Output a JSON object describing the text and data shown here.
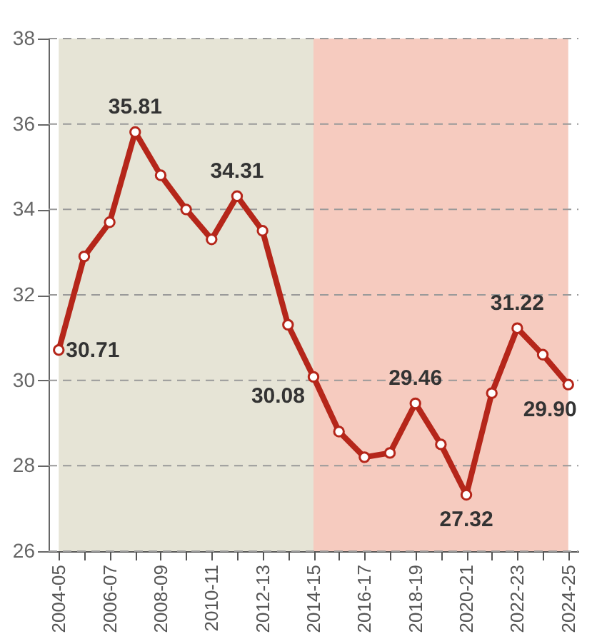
{
  "chart_data": {
    "type": "line",
    "categories": [
      "2004-05",
      null,
      "2006-07",
      null,
      "2008-09",
      null,
      "2010-11",
      null,
      "2012-13",
      null,
      "2014-15",
      null,
      "2016-17",
      null,
      "2018-19",
      null,
      "2020-21",
      null,
      "2022-23",
      null,
      "2024-25"
    ],
    "series": [
      {
        "color": "#b5261a",
        "values": [
          30.71,
          32.9,
          33.7,
          35.81,
          34.8,
          34.0,
          33.3,
          34.31,
          33.5,
          31.3,
          30.08,
          28.8,
          28.2,
          28.3,
          29.46,
          28.5,
          27.32,
          29.7,
          31.22,
          30.6,
          29.9
        ],
        "value_labels": [
          "30.71",
          null,
          null,
          "35.81",
          null,
          null,
          null,
          "34.31",
          null,
          null,
          "30.08",
          null,
          null,
          null,
          "29.46",
          null,
          "27.32",
          null,
          "31.22",
          null,
          "29.90"
        ]
      }
    ],
    "ylim": [
      26,
      38
    ],
    "yticks": [
      26,
      28,
      30,
      32,
      34,
      36,
      38
    ],
    "grid": "y",
    "marker": "circle",
    "line_style": "solid",
    "bands": [
      {
        "axis": "x",
        "from": "2004-05",
        "to": "2014-15",
        "color": "#e6e4d6"
      },
      {
        "axis": "x",
        "from": "2014-15",
        "to": "2024-25",
        "color": "#f6cbbf"
      }
    ]
  }
}
